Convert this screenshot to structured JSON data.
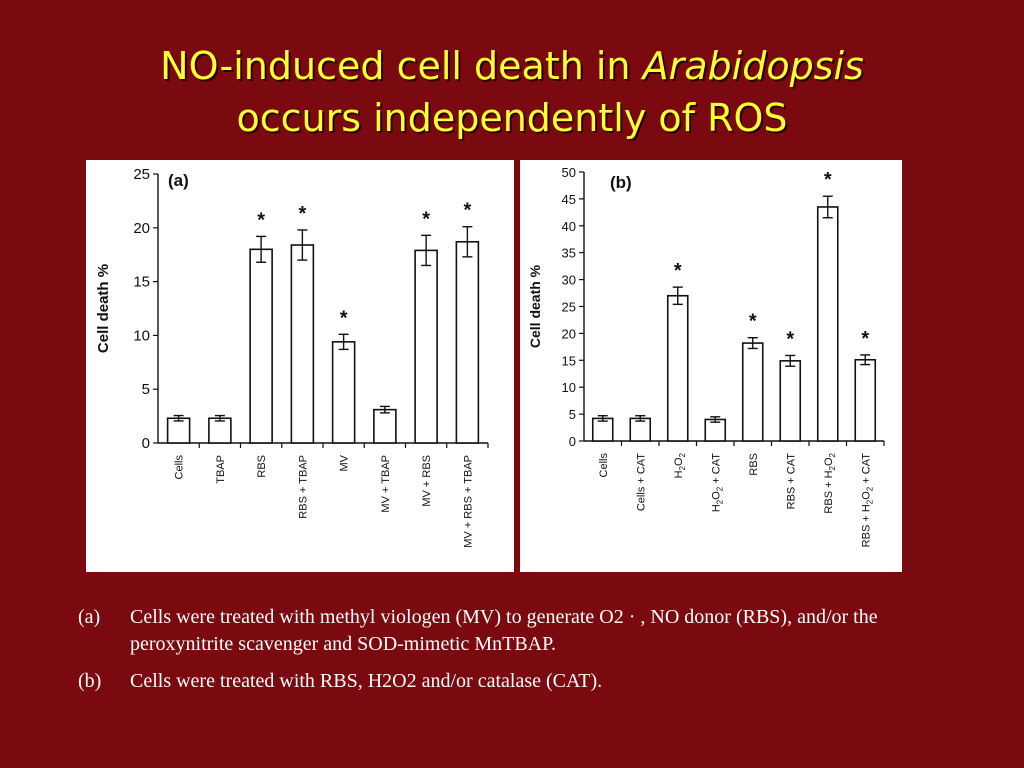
{
  "slide": {
    "title_line1_a": "NO-induced cell death in ",
    "title_line1_b": "Arabidopsis",
    "title_line2": "occurs independently of ROS",
    "title_color": "#ffff33",
    "background_color": "#7a0a0f"
  },
  "captions": [
    {
      "label": "(a)",
      "text": "Cells were treated with methyl viologen (MV) to generate O2 · , NO donor (RBS), and/or the peroxynitrite scavenger and SOD-mimetic MnTBAP."
    },
    {
      "label": "(b)",
      "text": "Cells were treated with RBS, H2O2 and/or catalase (CAT)."
    }
  ],
  "chart_data": [
    {
      "type": "bar",
      "panel_label": "(a)",
      "ylabel": "Cell death %",
      "ylim": [
        0,
        25
      ],
      "yticks": [
        0,
        5,
        10,
        15,
        20,
        25
      ],
      "categories": [
        "Cells",
        "TBAP",
        "RBS",
        "RBS + TBAP",
        "MV",
        "MV + TBAP",
        "MV + RBS",
        "MV + RBS + TBAP"
      ],
      "values": [
        2.3,
        2.3,
        18.0,
        18.4,
        9.4,
        3.1,
        17.9,
        18.7
      ],
      "errors": [
        0.25,
        0.25,
        1.2,
        1.4,
        0.7,
        0.3,
        1.4,
        1.4
      ],
      "significant": [
        false,
        false,
        true,
        true,
        true,
        false,
        true,
        true
      ],
      "marker": "*"
    },
    {
      "type": "bar",
      "panel_label": "(b)",
      "ylabel": "Cell death %",
      "ylim": [
        0,
        50
      ],
      "yticks": [
        0,
        5,
        10,
        15,
        20,
        25,
        30,
        35,
        40,
        45,
        50
      ],
      "categories": [
        "Cells",
        "Cells + CAT",
        "H2O2",
        "H2O2 + CAT",
        "RBS",
        "RBS + CAT",
        "RBS + H2O2",
        "RBS + H2O2 + CAT"
      ],
      "values": [
        4.2,
        4.2,
        27.0,
        4.0,
        18.2,
        14.9,
        43.5,
        15.1
      ],
      "errors": [
        0.5,
        0.5,
        1.6,
        0.5,
        1.0,
        1.0,
        2.0,
        0.9
      ],
      "significant": [
        false,
        false,
        true,
        false,
        true,
        true,
        true,
        true
      ],
      "marker": "*"
    }
  ]
}
